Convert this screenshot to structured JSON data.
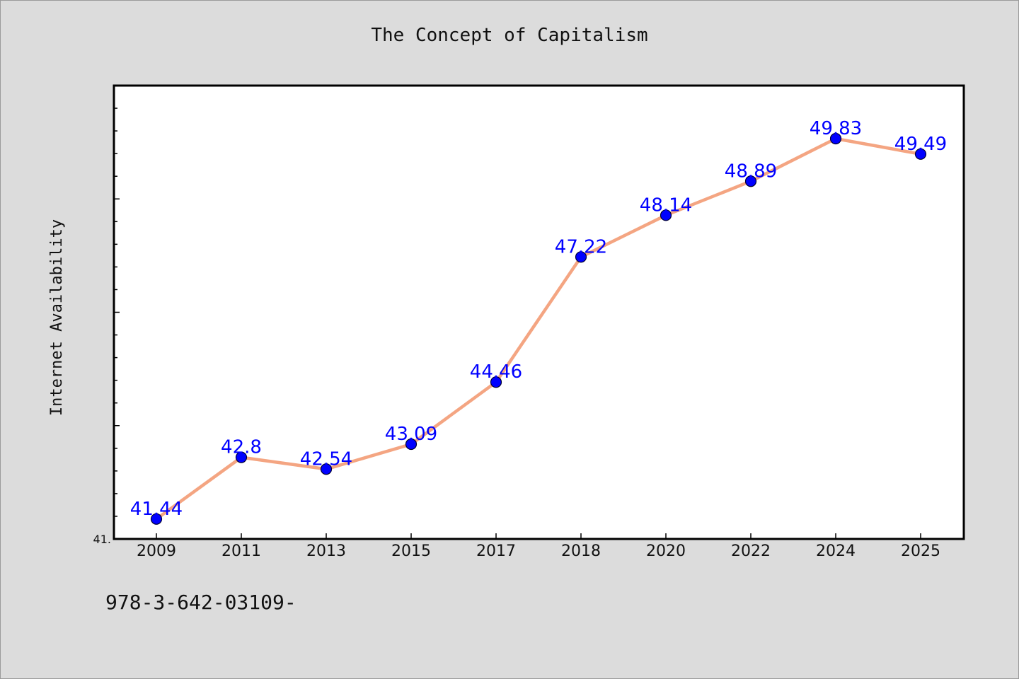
{
  "page": {
    "title": "The Concept of Capitalism",
    "footer_code": "978-3-642-03109-"
  },
  "chart_data": {
    "type": "line",
    "title": "The Concept of Capitalism",
    "xlabel": "",
    "ylabel": "Internet Availability",
    "categories": [
      "2009",
      "2011",
      "2013",
      "2015",
      "2017",
      "2018",
      "2020",
      "2022",
      "2024",
      "2025"
    ],
    "series": [
      {
        "values": [
          41.44,
          42.8,
          42.54,
          43.09,
          44.46,
          47.22,
          48.14,
          48.89,
          49.83,
          49.49
        ],
        "labels": [
          "41.44",
          "42.8",
          "42.54",
          "43.09",
          "44.46",
          "47.22",
          "48.14",
          "48.89",
          "49.83",
          "49.49"
        ]
      }
    ],
    "ylim": [
      41.0,
      51.0
    ],
    "y_tick_labels": [
      "41."
    ],
    "grid": false,
    "legend": "none",
    "colors": {
      "line": "#f4a582",
      "marker": "#0000ff",
      "data_label": "#0000ff",
      "plot_background": "#ffffff",
      "figure_background": "#dcdcdc"
    }
  }
}
